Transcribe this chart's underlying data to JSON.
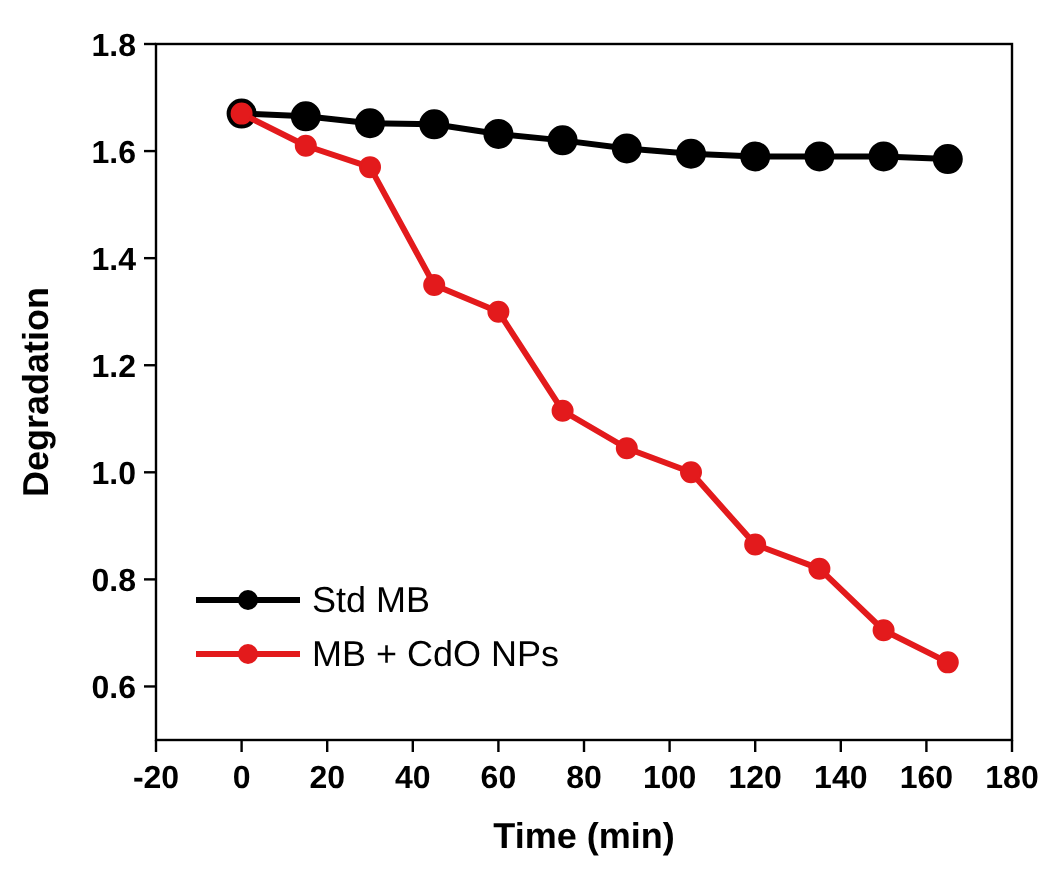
{
  "chart_data": {
    "type": "line",
    "xlabel": "Time (min)",
    "ylabel": "Degradation",
    "x": [
      0,
      15,
      30,
      45,
      60,
      75,
      90,
      105,
      120,
      135,
      150,
      165
    ],
    "series": [
      {
        "name": "Std MB",
        "color": "#000000",
        "values": [
          1.67,
          1.665,
          1.652,
          1.65,
          1.632,
          1.62,
          1.605,
          1.595,
          1.59,
          1.59,
          1.59,
          1.585
        ]
      },
      {
        "name": "MB + CdO NPs",
        "color": "#e31a1c",
        "values": [
          1.67,
          1.61,
          1.57,
          1.35,
          1.3,
          1.115,
          1.045,
          1.0,
          0.865,
          0.82,
          0.705,
          0.645
        ]
      }
    ],
    "xlim": [
      -20,
      180
    ],
    "xticks": [
      -20,
      0,
      20,
      40,
      60,
      80,
      100,
      120,
      140,
      160,
      180
    ],
    "ylim": [
      0.5,
      1.8
    ],
    "yticks": [
      {
        "value": 0.6,
        "label": "0.6"
      },
      {
        "value": 0.8,
        "label": "0.8"
      },
      {
        "value": 1.0,
        "label": "1.0"
      },
      {
        "value": 1.2,
        "label": "1.2"
      },
      {
        "value": 1.4,
        "label": "1.4"
      },
      {
        "value": 1.6,
        "label": "1.6"
      },
      {
        "value": 1.8,
        "label": "1.8"
      }
    ],
    "grid": false,
    "legend": "bottom left",
    "marker": "circle",
    "line_style": "solid"
  }
}
